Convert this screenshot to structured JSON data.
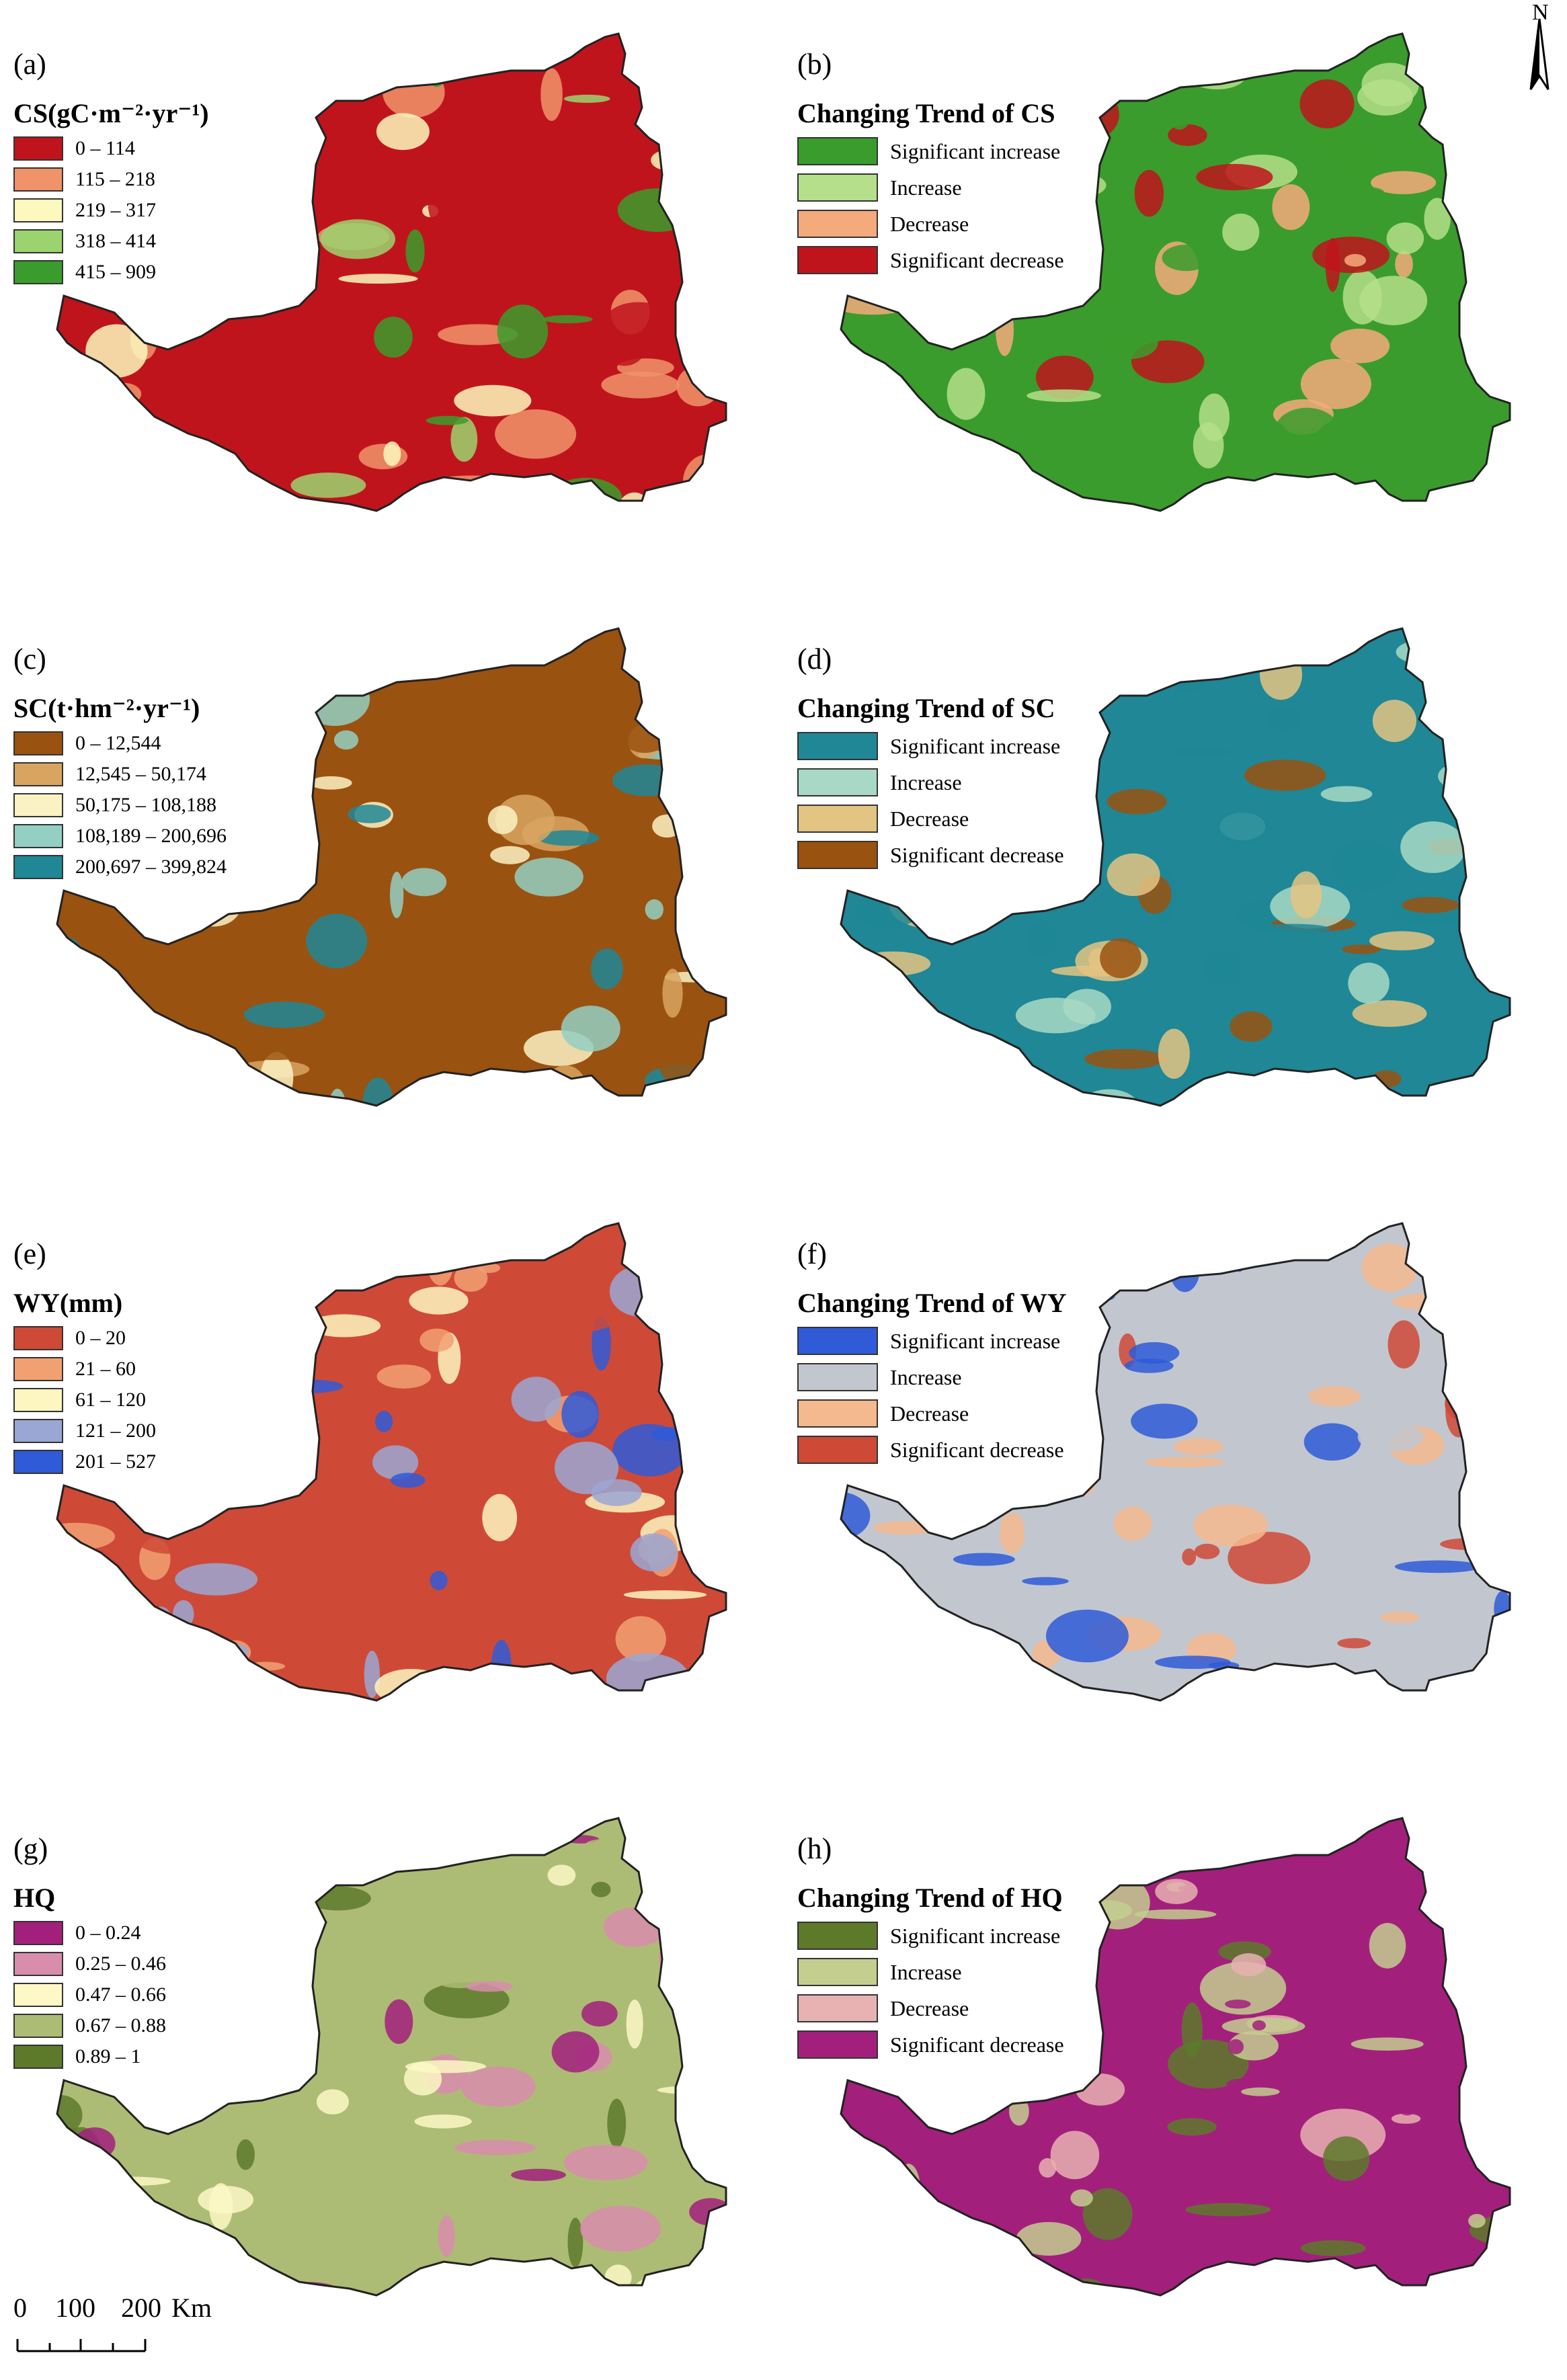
{
  "north_arrow": {
    "label": "N",
    "icon": "north-arrow-icon"
  },
  "scale_bar": {
    "ticks": [
      "0",
      "100",
      "200"
    ],
    "unit": "Km"
  },
  "panels": [
    {
      "id": "a",
      "label": "(a)",
      "title": "CS(gC·m⁻²·yr⁻¹)",
      "legend": [
        {
          "label": "0 – 114",
          "color": "#c0141c"
        },
        {
          "label": "115 – 218",
          "color": "#f0936a"
        },
        {
          "label": "219 – 317",
          "color": "#fdf8bd"
        },
        {
          "label": "318 – 414",
          "color": "#9bd36e"
        },
        {
          "label": "415 – 909",
          "color": "#3a9c2c"
        }
      ]
    },
    {
      "id": "b",
      "label": "(b)",
      "title": "Changing Trend of CS",
      "legend": [
        {
          "label": "Significant increase",
          "color": "#3a9c2c"
        },
        {
          "label": "Increase",
          "color": "#b5df8a"
        },
        {
          "label": "Decrease",
          "color": "#f4aa7c"
        },
        {
          "label": "Significant decrease",
          "color": "#c0141c"
        }
      ]
    },
    {
      "id": "c",
      "label": "(c)",
      "title": "SC(t·hm⁻²·yr⁻¹)",
      "legend": [
        {
          "label": "0 – 12,544",
          "color": "#9a5210"
        },
        {
          "label": "12,545 – 50,174",
          "color": "#d8a561"
        },
        {
          "label": "50,175 – 108,188",
          "color": "#fbf2c3"
        },
        {
          "label": "108,189 – 200,696",
          "color": "#93cfc2"
        },
        {
          "label": "200,697 – 399,824",
          "color": "#1f8796"
        }
      ]
    },
    {
      "id": "d",
      "label": "(d)",
      "title": "Changing Trend of SC",
      "legend": [
        {
          "label": "Significant increase",
          "color": "#1f8796"
        },
        {
          "label": "Increase",
          "color": "#a8d9c6"
        },
        {
          "label": "Decrease",
          "color": "#e4c483"
        },
        {
          "label": "Significant decrease",
          "color": "#9a5210"
        }
      ]
    },
    {
      "id": "e",
      "label": "(e)",
      "title": "WY(mm)",
      "legend": [
        {
          "label": "0 – 20",
          "color": "#cf4937"
        },
        {
          "label": "21 – 60",
          "color": "#f2a072"
        },
        {
          "label": "61 – 120",
          "color": "#fdf6c0"
        },
        {
          "label": "121 – 200",
          "color": "#9aa7d4"
        },
        {
          "label": "201 – 527",
          "color": "#2f5ad8"
        }
      ]
    },
    {
      "id": "f",
      "label": "(f)",
      "title": "Changing Trend of WY",
      "legend": [
        {
          "label": "Significant increase",
          "color": "#2f5ad8"
        },
        {
          "label": "Increase",
          "color": "#c2c7cf"
        },
        {
          "label": "Decrease",
          "color": "#f4b98e"
        },
        {
          "label": "Significant decrease",
          "color": "#cf4937"
        }
      ]
    },
    {
      "id": "g",
      "label": "(g)",
      "title": "HQ",
      "legend": [
        {
          "label": "0 – 0.24",
          "color": "#a2207c"
        },
        {
          "label": "0.25 – 0.46",
          "color": "#d88dad"
        },
        {
          "label": "0.47 – 0.66",
          "color": "#fdf8c6"
        },
        {
          "label": "0.67 – 0.88",
          "color": "#adbc74"
        },
        {
          "label": "0.89 – 1",
          "color": "#5d7a2b"
        }
      ]
    },
    {
      "id": "h",
      "label": "(h)",
      "title": "Changing Trend of HQ",
      "legend": [
        {
          "label": "Significant increase",
          "color": "#5d7a2b"
        },
        {
          "label": "Increase",
          "color": "#c3ce8f"
        },
        {
          "label": "Decrease",
          "color": "#e8b2b2"
        },
        {
          "label": "Significant decrease",
          "color": "#a2207c"
        }
      ]
    }
  ]
}
